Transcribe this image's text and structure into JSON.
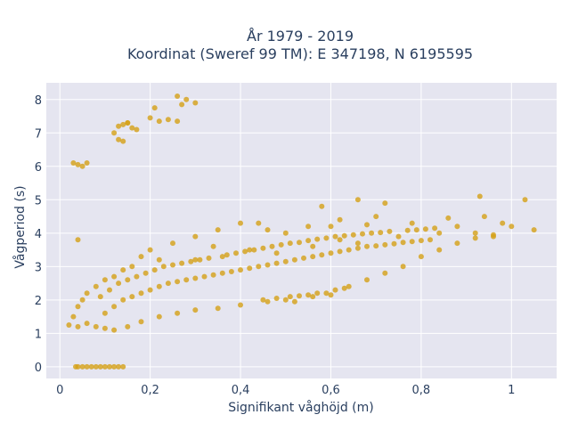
{
  "chart_data": {
    "type": "scatter",
    "title_line1": "År 1979 - 2019",
    "title_line2": "Koordinat (Sweref 99 TM): E 347198, N 6195595",
    "xlabel": "Signifikant våghöjd (m)",
    "ylabel": "Vågperiod (s)",
    "xlim": [
      -0.03,
      1.1
    ],
    "ylim": [
      -0.35,
      8.5
    ],
    "x_ticks": [
      0,
      0.2,
      0.4,
      0.6,
      0.8,
      1
    ],
    "x_tick_labels": [
      "0",
      "0,2",
      "0,4",
      "0,6",
      "0,8",
      "1"
    ],
    "y_ticks": [
      0,
      1,
      2,
      3,
      4,
      5,
      6,
      7,
      8
    ],
    "y_tick_labels": [
      "0",
      "1",
      "2",
      "3",
      "4",
      "5",
      "6",
      "7",
      "8"
    ],
    "grid": true,
    "legend": "none",
    "colors": {
      "marker": "#d4a017",
      "plot_bg": "#e5e5f0",
      "grid": "#ffffff",
      "text": "#2a3f5f"
    },
    "series": [
      {
        "points": [
          [
            0.03,
            6.1
          ],
          [
            0.04,
            6.05
          ],
          [
            0.05,
            6.0
          ],
          [
            0.06,
            6.1
          ],
          [
            0.04,
            3.8
          ],
          [
            0.13,
            7.2
          ],
          [
            0.14,
            7.25
          ],
          [
            0.15,
            7.3
          ],
          [
            0.16,
            7.15
          ],
          [
            0.13,
            6.8
          ],
          [
            0.14,
            6.75
          ],
          [
            0.15,
            7.3
          ],
          [
            0.12,
            7.0
          ],
          [
            0.2,
            7.45
          ],
          [
            0.21,
            7.75
          ],
          [
            0.22,
            7.35
          ],
          [
            0.24,
            7.4
          ],
          [
            0.26,
            8.1
          ],
          [
            0.27,
            7.85
          ],
          [
            0.28,
            8.0
          ],
          [
            0.3,
            7.9
          ],
          [
            0.26,
            7.35
          ],
          [
            0.17,
            7.1
          ],
          [
            0.93,
            5.1
          ],
          [
            1.03,
            5.0
          ],
          [
            0.94,
            4.5
          ],
          [
            0.98,
            4.3
          ],
          [
            1.05,
            4.1
          ],
          [
            0.86,
            4.45
          ],
          [
            0.72,
            4.9
          ],
          [
            0.7,
            4.5
          ],
          [
            0.66,
            5.0
          ],
          [
            0.58,
            4.8
          ],
          [
            0.55,
            4.2
          ],
          [
            0.62,
            4.4
          ],
          [
            0.44,
            4.3
          ],
          [
            0.46,
            4.1
          ],
          [
            0.5,
            4.0
          ],
          [
            0.6,
            4.2
          ],
          [
            0.68,
            4.25
          ],
          [
            0.78,
            4.3
          ],
          [
            0.88,
            4.2
          ],
          [
            0.92,
            4.0
          ],
          [
            1.0,
            4.2
          ],
          [
            0.96,
            3.9
          ],
          [
            0.84,
            4.0
          ],
          [
            0.82,
            3.8
          ],
          [
            0.75,
            3.9
          ],
          [
            0.66,
            3.7
          ],
          [
            0.62,
            3.8
          ],
          [
            0.56,
            3.6
          ],
          [
            0.48,
            3.4
          ],
          [
            0.42,
            3.5
          ],
          [
            0.36,
            3.3
          ],
          [
            0.3,
            3.2
          ],
          [
            0.25,
            3.7
          ],
          [
            0.3,
            3.9
          ],
          [
            0.35,
            4.1
          ],
          [
            0.4,
            4.3
          ],
          [
            0.34,
            3.6
          ],
          [
            0.22,
            3.2
          ],
          [
            0.2,
            3.5
          ],
          [
            0.18,
            3.3
          ],
          [
            0.16,
            3.0
          ],
          [
            0.14,
            2.9
          ],
          [
            0.12,
            2.7
          ],
          [
            0.1,
            2.6
          ],
          [
            0.08,
            2.4
          ],
          [
            0.06,
            2.2
          ],
          [
            0.05,
            2.0
          ],
          [
            0.04,
            1.8
          ],
          [
            0.03,
            1.5
          ],
          [
            0.02,
            1.25
          ],
          [
            0.04,
            1.2
          ],
          [
            0.06,
            1.3
          ],
          [
            0.08,
            1.2
          ],
          [
            0.1,
            1.15
          ],
          [
            0.12,
            1.1
          ],
          [
            0.15,
            1.2
          ],
          [
            0.18,
            1.35
          ],
          [
            0.22,
            1.5
          ],
          [
            0.26,
            1.6
          ],
          [
            0.3,
            1.7
          ],
          [
            0.35,
            1.75
          ],
          [
            0.4,
            1.85
          ],
          [
            0.46,
            1.95
          ],
          [
            0.5,
            2.0
          ],
          [
            0.52,
            1.95
          ],
          [
            0.56,
            2.1
          ],
          [
            0.6,
            2.15
          ],
          [
            0.64,
            2.4
          ],
          [
            0.68,
            2.6
          ],
          [
            0.72,
            2.8
          ],
          [
            0.76,
            3.0
          ],
          [
            0.8,
            3.3
          ],
          [
            0.84,
            3.5
          ],
          [
            0.88,
            3.7
          ],
          [
            0.92,
            3.85
          ],
          [
            0.96,
            3.95
          ],
          [
            0.09,
            2.1
          ],
          [
            0.11,
            2.3
          ],
          [
            0.13,
            2.5
          ],
          [
            0.15,
            2.6
          ],
          [
            0.17,
            2.7
          ],
          [
            0.19,
            2.8
          ],
          [
            0.21,
            2.9
          ],
          [
            0.23,
            3.0
          ],
          [
            0.25,
            3.05
          ],
          [
            0.27,
            3.1
          ],
          [
            0.29,
            3.15
          ],
          [
            0.31,
            3.2
          ],
          [
            0.33,
            3.25
          ],
          [
            0.37,
            3.35
          ],
          [
            0.39,
            3.4
          ],
          [
            0.41,
            3.45
          ],
          [
            0.43,
            3.5
          ],
          [
            0.45,
            3.55
          ],
          [
            0.47,
            3.6
          ],
          [
            0.49,
            3.65
          ],
          [
            0.51,
            3.7
          ],
          [
            0.53,
            3.72
          ],
          [
            0.55,
            3.78
          ],
          [
            0.57,
            3.82
          ],
          [
            0.59,
            3.85
          ],
          [
            0.61,
            3.9
          ],
          [
            0.63,
            3.92
          ],
          [
            0.65,
            3.95
          ],
          [
            0.67,
            3.98
          ],
          [
            0.69,
            4.0
          ],
          [
            0.71,
            4.02
          ],
          [
            0.73,
            4.05
          ],
          [
            0.77,
            4.08
          ],
          [
            0.79,
            4.1
          ],
          [
            0.81,
            4.12
          ],
          [
            0.83,
            4.15
          ],
          [
            0.1,
            1.6
          ],
          [
            0.12,
            1.8
          ],
          [
            0.14,
            2.0
          ],
          [
            0.16,
            2.1
          ],
          [
            0.18,
            2.2
          ],
          [
            0.2,
            2.3
          ],
          [
            0.22,
            2.4
          ],
          [
            0.24,
            2.5
          ],
          [
            0.26,
            2.55
          ],
          [
            0.28,
            2.6
          ],
          [
            0.3,
            2.65
          ],
          [
            0.32,
            2.7
          ],
          [
            0.34,
            2.75
          ],
          [
            0.36,
            2.8
          ],
          [
            0.38,
            2.85
          ],
          [
            0.4,
            2.9
          ],
          [
            0.42,
            2.95
          ],
          [
            0.44,
            3.0
          ],
          [
            0.46,
            3.05
          ],
          [
            0.48,
            3.1
          ],
          [
            0.5,
            3.15
          ],
          [
            0.52,
            3.2
          ],
          [
            0.54,
            3.25
          ],
          [
            0.56,
            3.3
          ],
          [
            0.58,
            3.35
          ],
          [
            0.6,
            3.4
          ],
          [
            0.62,
            3.45
          ],
          [
            0.64,
            3.5
          ],
          [
            0.66,
            3.55
          ],
          [
            0.68,
            3.6
          ],
          [
            0.7,
            3.62
          ],
          [
            0.72,
            3.65
          ],
          [
            0.74,
            3.68
          ],
          [
            0.76,
            3.72
          ],
          [
            0.78,
            3.75
          ],
          [
            0.8,
            3.78
          ],
          [
            0.45,
            2.0
          ],
          [
            0.48,
            2.05
          ],
          [
            0.51,
            2.1
          ],
          [
            0.53,
            2.12
          ],
          [
            0.55,
            2.15
          ],
          [
            0.57,
            2.2
          ],
          [
            0.59,
            2.2
          ],
          [
            0.61,
            2.3
          ],
          [
            0.63,
            2.35
          ],
          [
            0.05,
            0.0
          ],
          [
            0.06,
            0.0
          ],
          [
            0.07,
            0.0
          ],
          [
            0.08,
            0.0
          ],
          [
            0.09,
            0.0
          ],
          [
            0.1,
            0.0
          ],
          [
            0.11,
            0.0
          ],
          [
            0.12,
            0.0
          ],
          [
            0.13,
            0.0
          ],
          [
            0.14,
            0.0
          ],
          [
            0.035,
            0.0
          ],
          [
            0.04,
            0.0
          ]
        ]
      }
    ]
  }
}
